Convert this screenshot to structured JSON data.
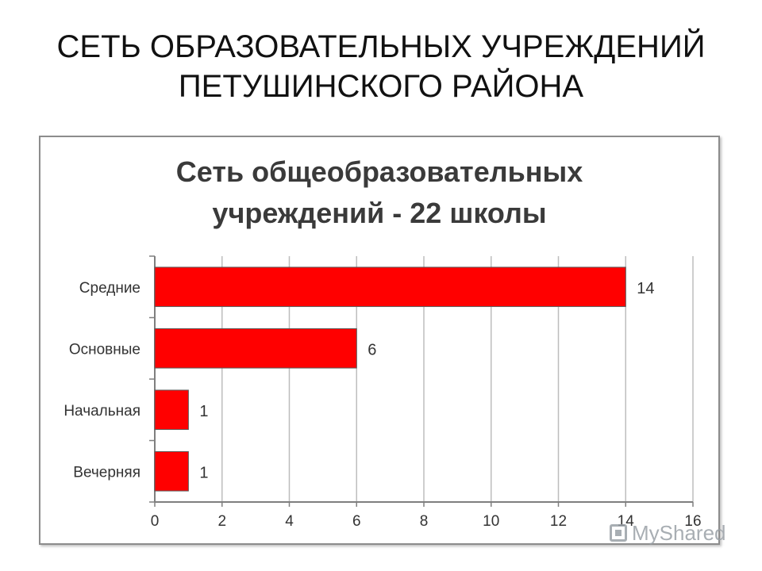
{
  "slide": {
    "title_line1": "СЕТЬ ОБРАЗОВАТЕЛЬНЫХ УЧРЕЖДЕНИЙ",
    "title_line2": "ПЕТУШИНСКОГО РАЙОНА"
  },
  "chart_data": {
    "type": "bar",
    "orientation": "horizontal",
    "title_lines": [
      "Сеть общеобразовательных",
      "учреждений - 22 школы"
    ],
    "categories": [
      "Средние",
      "Основные",
      "Начальная",
      "Вечерняя"
    ],
    "values": [
      14,
      6,
      1,
      1
    ],
    "data_labels": [
      "14",
      "6",
      "1",
      "1"
    ],
    "xticks": [
      0,
      2,
      4,
      6,
      8,
      10,
      12,
      14,
      16
    ],
    "xlim": [
      0,
      16
    ],
    "grid": "vertical",
    "legend": "none",
    "bar_color": "#ff0000"
  },
  "watermark": {
    "text": "MyShared"
  }
}
